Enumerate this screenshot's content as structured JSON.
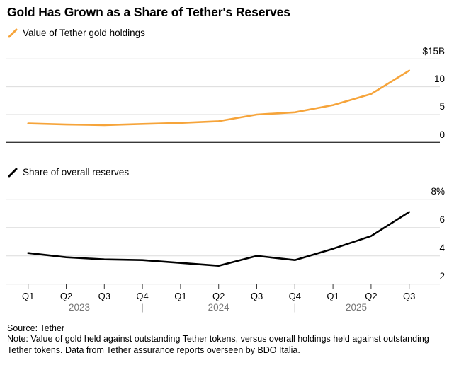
{
  "title": "Gold Has Grown as a Share of Tether's Reserves",
  "chart_data": [
    {
      "type": "line",
      "legend": "Value of Tether gold holdings",
      "color": "#F6A43A",
      "categories": [
        "Q1 2023",
        "Q2 2023",
        "Q3 2023",
        "Q4 2023",
        "Q1 2024",
        "Q2 2024",
        "Q3 2024",
        "Q4 2024",
        "Q1 2025",
        "Q2 2025",
        "Q3 2025"
      ],
      "values": [
        3.4,
        3.2,
        3.1,
        3.3,
        3.5,
        3.8,
        5.0,
        5.4,
        6.7,
        8.7,
        12.9
      ],
      "unit": "$B",
      "ylim": [
        0,
        15
      ],
      "yticks": [
        0,
        5,
        10,
        15
      ],
      "ytick_labels": [
        "0",
        "5",
        "10",
        "$15B"
      ],
      "grid": true,
      "legend_position": "top-left"
    },
    {
      "type": "line",
      "legend": "Share of overall reserves",
      "color": "#000000",
      "categories": [
        "Q1 2023",
        "Q2 2023",
        "Q3 2023",
        "Q4 2023",
        "Q1 2024",
        "Q2 2024",
        "Q3 2024",
        "Q4 2024",
        "Q1 2025",
        "Q2 2025",
        "Q3 2025"
      ],
      "values": [
        4.2,
        3.9,
        3.75,
        3.7,
        3.5,
        3.3,
        4.0,
        3.7,
        4.5,
        5.4,
        7.1
      ],
      "unit": "%",
      "ylim": [
        2,
        8
      ],
      "yticks": [
        2,
        4,
        6,
        8
      ],
      "ytick_labels": [
        "2",
        "4",
        "6",
        "8%"
      ],
      "grid": true,
      "legend_position": "top-left"
    }
  ],
  "x_axis": {
    "tick_labels": [
      "Q1",
      "Q2",
      "Q3",
      "Q4",
      "Q1",
      "Q2",
      "Q3",
      "Q4",
      "Q1",
      "Q2",
      "Q3"
    ],
    "years": [
      "2023",
      "2024",
      "2025"
    ],
    "separator": "|"
  },
  "footer": {
    "source": "Source: Tether",
    "note": "Note: Value of gold held against outstanding Tether tokens, versus overall holdings held against outstanding Tether tokens. Data from Tether assurance reports overseen by BDO Italia."
  }
}
